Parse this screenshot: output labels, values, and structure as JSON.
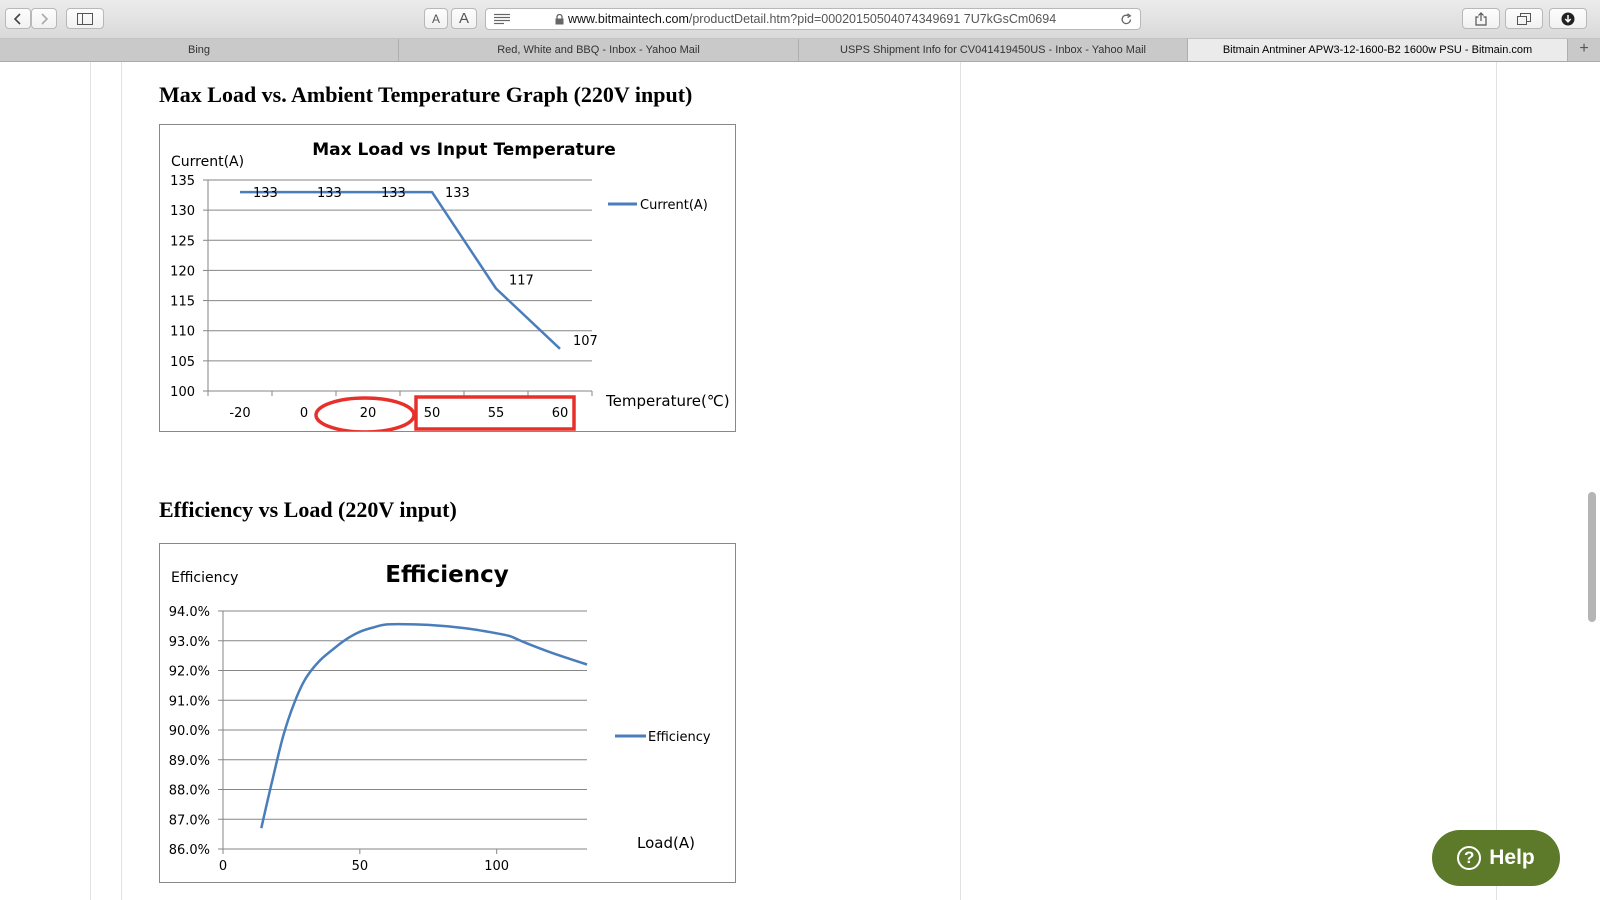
{
  "browser": {
    "url_host": "www.bitmaintech.com",
    "url_path": "/productDetail.htm?pid=00020150504074349691 7U7kGsCm0694",
    "font_small": "A",
    "font_large": "A"
  },
  "tabs": [
    {
      "label": "Bing"
    },
    {
      "label": "Red, White and BBQ - Inbox - Yahoo Mail"
    },
    {
      "label": "USPS Shipment Info for CV041419450US - Inbox - Yahoo Mail"
    },
    {
      "label": "Bitmain Antminer APW3-12-1600-B2 1600w PSU - Bitmain.com",
      "active": true
    }
  ],
  "sections": {
    "temp_heading": "Max Load vs. Ambient Temperature Graph (220V input)",
    "eff_heading": "Efficiency vs Load (220V input)"
  },
  "help": {
    "label": "Help"
  },
  "chart_data": [
    {
      "type": "line",
      "title": "Max Load vs Input Temperature",
      "ylabel": "Current(A)",
      "xlabel": "Temperature(℃)",
      "categories": [
        "-20",
        "0",
        "20",
        "50",
        "55",
        "60"
      ],
      "ylim": [
        100,
        135
      ],
      "yticks": [
        100,
        105,
        110,
        115,
        120,
        125,
        130,
        135
      ],
      "series": [
        {
          "name": "Current(A)",
          "values": [
            133,
            133,
            133,
            133,
            117,
            107
          ],
          "data_labels": [
            "133",
            "133",
            "133",
            "133",
            "117",
            "107"
          ]
        }
      ],
      "legend": "right",
      "grid": true,
      "color": "#4a7ebb",
      "annotation_color": "#e8302b"
    },
    {
      "type": "line",
      "title": "Efficiency",
      "ylabel": "Efficiency",
      "xlabel": "Load(A)",
      "xlim": [
        0,
        133
      ],
      "xticks": [
        0,
        50,
        100
      ],
      "ylim": [
        86,
        94
      ],
      "yticks": [
        86,
        87,
        88,
        89,
        90,
        91,
        92,
        93,
        94
      ],
      "ytick_labels": [
        "86.0%",
        "87.0%",
        "88.0%",
        "89.0%",
        "90.0%",
        "91.0%",
        "92.0%",
        "93.0%",
        "94.0%"
      ],
      "series": [
        {
          "name": "Efficiency",
          "x": [
            14,
            18,
            22,
            26,
            30,
            35,
            40,
            45,
            50,
            55,
            60,
            70,
            80,
            90,
            100,
            105,
            110,
            120,
            133
          ],
          "values": [
            86.7,
            88.3,
            89.8,
            90.9,
            91.7,
            92.3,
            92.7,
            93.05,
            93.3,
            93.45,
            93.55,
            93.55,
            93.5,
            93.4,
            93.25,
            93.15,
            92.95,
            92.6,
            92.2
          ]
        }
      ],
      "legend": "right",
      "grid": true,
      "color": "#4a7ebb"
    }
  ]
}
